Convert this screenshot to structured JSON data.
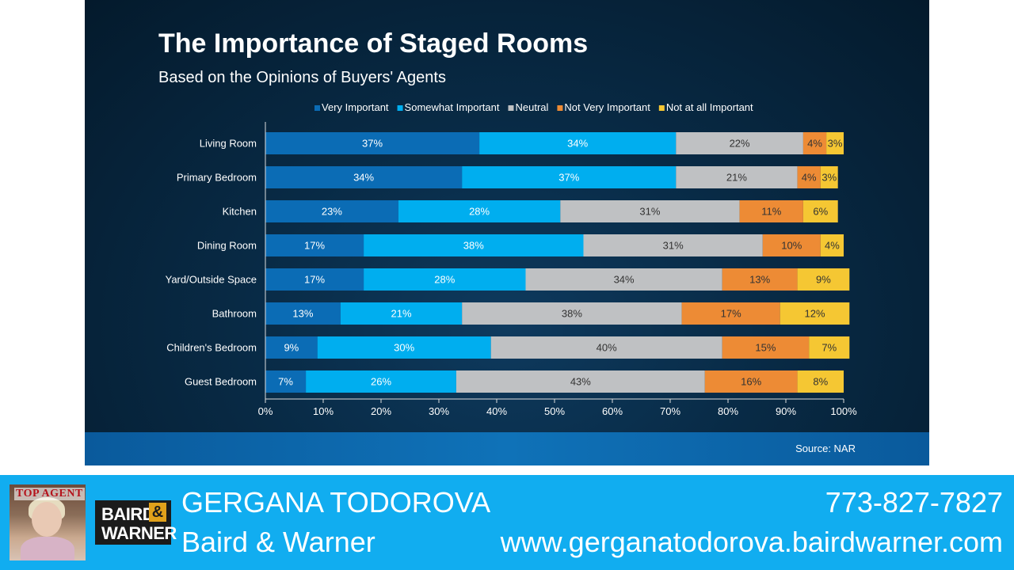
{
  "slide": {
    "title": "The Importance of Staged Rooms",
    "subtitle": "Based on the Opinions of Buyers' Agents",
    "source": "Source: NAR"
  },
  "chart_data": {
    "type": "bar",
    "orientation": "horizontal",
    "stacked": true,
    "categories": [
      "Living Room",
      "Primary Bedroom",
      "Kitchen",
      "Dining Room",
      "Yard/Outside Space",
      "Bathroom",
      "Children's Bedroom",
      "Guest Bedroom"
    ],
    "series": [
      {
        "name": "Very Important",
        "color": "#0b6cb5",
        "values": [
          37,
          34,
          23,
          17,
          17,
          13,
          9,
          7
        ]
      },
      {
        "name": "Somewhat Important",
        "color": "#00aeef",
        "values": [
          34,
          37,
          28,
          38,
          28,
          21,
          30,
          26
        ]
      },
      {
        "name": "Neutral",
        "color": "#bfc1c3",
        "values": [
          22,
          21,
          31,
          31,
          34,
          38,
          40,
          43
        ]
      },
      {
        "name": "Not Very Important",
        "color": "#ed8b35",
        "values": [
          4,
          4,
          11,
          10,
          13,
          17,
          15,
          16
        ]
      },
      {
        "name": "Not at all Important",
        "color": "#f5c733",
        "values": [
          3,
          3,
          6,
          4,
          9,
          12,
          7,
          8
        ]
      }
    ],
    "xlim": [
      0,
      100
    ],
    "xticks": [
      "0%",
      "10%",
      "20%",
      "30%",
      "40%",
      "50%",
      "60%",
      "70%",
      "80%",
      "90%",
      "100%"
    ],
    "value_suffix": "%",
    "legend_position": "top",
    "grid": false
  },
  "footer": {
    "agent_name": "GERGANA TODOROVA",
    "company": "Baird & Warner",
    "phone": "773-827-7827",
    "website": "www.gergana todorova.bairdwarner.com",
    "logo_line1": "BAIRD",
    "logo_amp": "&",
    "logo_line2": "WARNER",
    "magazine_text": "TOP AGENT"
  }
}
